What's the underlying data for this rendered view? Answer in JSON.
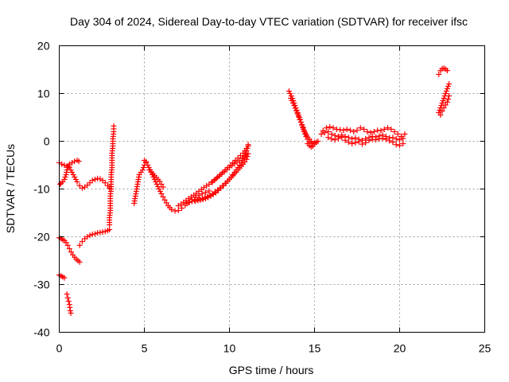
{
  "chart_data": {
    "type": "scatter",
    "title": "Day 304 of 2024, Sidereal Day-to-day VTEC variation (SDTVAR) for receiver ifsc",
    "xlabel": "GPS time / hours",
    "ylabel": "SDTVAR / TECUs",
    "xlim": [
      0,
      25
    ],
    "ylim": [
      -40,
      20
    ],
    "x_ticks": [
      0,
      5,
      10,
      15,
      20,
      25
    ],
    "y_ticks": [
      -40,
      -30,
      -20,
      -10,
      0,
      10,
      20
    ],
    "grid": true,
    "marker": "+",
    "color": "#ff0000",
    "series": [
      {
        "points": [
          [
            0.0,
            -4.5
          ],
          [
            0.15,
            -4.8
          ],
          [
            0.3,
            -5.0
          ],
          [
            0.45,
            -5.2
          ],
          [
            0.6,
            -4.8
          ],
          [
            0.75,
            -4.5
          ],
          [
            0.9,
            -4.2
          ],
          [
            1.05,
            -4.0
          ],
          [
            1.15,
            -4.2
          ]
        ]
      },
      {
        "points": [
          [
            0.05,
            -9.0
          ],
          [
            0.1,
            -8.8
          ],
          [
            0.2,
            -8.5
          ],
          [
            0.3,
            -8.0
          ],
          [
            0.4,
            -7.0
          ],
          [
            0.45,
            -6.0
          ],
          [
            0.5,
            -5.5
          ],
          [
            0.55,
            -5.2
          ]
        ]
      },
      {
        "points": [
          [
            0.6,
            -5.5
          ],
          [
            0.75,
            -6.5
          ],
          [
            0.9,
            -7.5
          ],
          [
            1.05,
            -8.5
          ],
          [
            1.2,
            -9.3
          ],
          [
            1.35,
            -9.8
          ],
          [
            1.5,
            -9.6
          ],
          [
            1.65,
            -9.2
          ],
          [
            1.8,
            -8.7
          ],
          [
            1.95,
            -8.2
          ],
          [
            2.1,
            -8.0
          ],
          [
            2.25,
            -7.8
          ],
          [
            2.4,
            -7.9
          ],
          [
            2.55,
            -8.2
          ],
          [
            2.7,
            -8.7
          ],
          [
            2.85,
            -9.3
          ],
          [
            2.95,
            -9.8
          ]
        ]
      },
      {
        "points": [
          [
            0.0,
            -20.2
          ],
          [
            0.1,
            -20.4
          ],
          [
            0.2,
            -20.6
          ],
          [
            0.3,
            -20.8
          ],
          [
            0.4,
            -21.2
          ],
          [
            0.5,
            -21.8
          ],
          [
            0.6,
            -22.5
          ],
          [
            0.7,
            -23.2
          ],
          [
            0.8,
            -23.8
          ],
          [
            0.9,
            -24.3
          ],
          [
            1.0,
            -24.7
          ],
          [
            1.1,
            -25.0
          ],
          [
            1.2,
            -25.3
          ]
        ]
      },
      {
        "points": [
          [
            1.2,
            -21.8
          ],
          [
            1.35,
            -21.0
          ],
          [
            1.5,
            -20.4
          ],
          [
            1.65,
            -20.0
          ],
          [
            1.8,
            -19.7
          ],
          [
            1.95,
            -19.5
          ],
          [
            2.1,
            -19.4
          ],
          [
            2.25,
            -19.2
          ],
          [
            2.4,
            -19.1
          ],
          [
            2.55,
            -19.0
          ],
          [
            2.7,
            -18.9
          ],
          [
            2.85,
            -18.7
          ],
          [
            2.95,
            -18.5
          ]
        ]
      },
      {
        "points": [
          [
            0.0,
            -28.0
          ],
          [
            0.1,
            -28.2
          ],
          [
            0.2,
            -28.4
          ],
          [
            0.3,
            -28.6
          ]
        ]
      },
      {
        "points": [
          [
            0.45,
            -32.0
          ],
          [
            0.5,
            -32.8
          ],
          [
            0.55,
            -33.5
          ],
          [
            0.6,
            -34.2
          ],
          [
            0.62,
            -34.8
          ],
          [
            0.65,
            -35.5
          ],
          [
            0.68,
            -36.0
          ]
        ]
      },
      {
        "points": [
          [
            2.95,
            -17.5
          ],
          [
            2.95,
            -16.0
          ],
          [
            3.0,
            -14.5
          ],
          [
            3.0,
            -13.0
          ],
          [
            3.0,
            -11.5
          ],
          [
            3.05,
            -10.0
          ],
          [
            3.05,
            -8.5
          ],
          [
            3.05,
            -7.0
          ],
          [
            3.1,
            -5.5
          ],
          [
            3.1,
            -4.0
          ],
          [
            3.1,
            -2.5
          ],
          [
            3.15,
            -1.0
          ],
          [
            3.15,
            0.5
          ],
          [
            3.2,
            2.0
          ],
          [
            3.2,
            3.2
          ]
        ]
      },
      {
        "points": [
          [
            4.4,
            -13.0
          ],
          [
            4.45,
            -12.0
          ],
          [
            4.5,
            -11.0
          ],
          [
            4.55,
            -10.0
          ],
          [
            4.6,
            -9.0
          ],
          [
            4.65,
            -8.0
          ],
          [
            4.7,
            -7.0
          ],
          [
            4.8,
            -6.5
          ],
          [
            4.9,
            -6.0
          ],
          [
            5.0,
            -5.0
          ],
          [
            5.1,
            -4.3
          ]
        ]
      },
      {
        "points": [
          [
            5.0,
            -4.0
          ],
          [
            5.2,
            -5.0
          ],
          [
            5.4,
            -6.5
          ],
          [
            5.6,
            -8.0
          ],
          [
            5.8,
            -9.5
          ],
          [
            6.0,
            -11.0
          ],
          [
            6.2,
            -12.3
          ],
          [
            6.4,
            -13.5
          ],
          [
            6.6,
            -14.3
          ],
          [
            6.8,
            -14.6
          ],
          [
            7.0,
            -14.5
          ],
          [
            7.2,
            -14.0
          ],
          [
            7.4,
            -13.4
          ],
          [
            7.6,
            -12.8
          ],
          [
            7.8,
            -12.2
          ],
          [
            8.0,
            -11.7
          ],
          [
            8.2,
            -11.3
          ],
          [
            8.4,
            -11.0
          ],
          [
            8.6,
            -10.7
          ],
          [
            8.8,
            -10.4
          ]
        ]
      },
      {
        "points": [
          [
            7.0,
            -13.5
          ],
          [
            7.3,
            -12.8
          ],
          [
            7.6,
            -12.0
          ],
          [
            7.9,
            -11.3
          ],
          [
            8.2,
            -10.5
          ],
          [
            8.5,
            -9.7
          ],
          [
            8.8,
            -9.0
          ],
          [
            9.1,
            -8.2
          ],
          [
            9.4,
            -7.3
          ],
          [
            9.7,
            -6.4
          ],
          [
            10.0,
            -5.5
          ],
          [
            10.3,
            -4.7
          ],
          [
            10.6,
            -4.0
          ],
          [
            10.9,
            -3.2
          ],
          [
            11.0,
            -2.6
          ]
        ]
      },
      {
        "points": [
          [
            7.5,
            -13.0
          ],
          [
            7.8,
            -12.6
          ],
          [
            8.1,
            -12.2
          ],
          [
            8.4,
            -12.0
          ],
          [
            8.7,
            -11.6
          ],
          [
            9.0,
            -11.0
          ],
          [
            9.3,
            -10.2
          ],
          [
            9.6,
            -9.3
          ],
          [
            9.9,
            -8.3
          ],
          [
            10.2,
            -7.2
          ],
          [
            10.5,
            -6.0
          ],
          [
            10.8,
            -4.8
          ],
          [
            11.0,
            -3.8
          ],
          [
            11.1,
            -2.6
          ]
        ]
      },
      {
        "points": [
          [
            8.0,
            -12.5
          ],
          [
            8.3,
            -12.3
          ],
          [
            8.6,
            -12.0
          ],
          [
            8.9,
            -11.5
          ],
          [
            9.2,
            -10.8
          ],
          [
            9.5,
            -9.8
          ],
          [
            9.8,
            -8.8
          ],
          [
            10.1,
            -7.5
          ],
          [
            10.4,
            -6.0
          ],
          [
            10.7,
            -4.5
          ],
          [
            10.9,
            -3.0
          ],
          [
            11.05,
            -1.5
          ],
          [
            11.1,
            -0.7
          ]
        ]
      },
      {
        "points": [
          [
            9.0,
            -8.5
          ],
          [
            9.3,
            -7.5
          ],
          [
            9.6,
            -6.5
          ],
          [
            9.9,
            -5.5
          ],
          [
            10.2,
            -4.5
          ],
          [
            10.5,
            -3.5
          ],
          [
            10.8,
            -2.5
          ],
          [
            11.0,
            -1.5
          ],
          [
            11.1,
            -1.0
          ]
        ]
      },
      {
        "points": [
          [
            5.3,
            -6.0
          ],
          [
            5.5,
            -6.8
          ],
          [
            5.7,
            -7.6
          ],
          [
            5.9,
            -8.4
          ],
          [
            6.0,
            -9.0
          ],
          [
            6.1,
            -9.6
          ]
        ]
      },
      {
        "points": [
          [
            13.5,
            10.5
          ],
          [
            13.7,
            9.0
          ],
          [
            13.9,
            7.0
          ],
          [
            14.1,
            5.0
          ],
          [
            14.3,
            3.0
          ],
          [
            14.5,
            1.0
          ],
          [
            14.7,
            -0.2
          ],
          [
            14.9,
            -0.5
          ],
          [
            15.1,
            -0.2
          ]
        ]
      },
      {
        "points": [
          [
            13.6,
            9.0
          ],
          [
            13.8,
            7.5
          ],
          [
            14.0,
            5.8
          ],
          [
            14.2,
            4.0
          ],
          [
            14.4,
            2.2
          ],
          [
            14.6,
            0.8
          ],
          [
            14.8,
            0.0
          ],
          [
            15.0,
            -0.3
          ],
          [
            15.2,
            0.0
          ]
        ]
      },
      {
        "points": [
          [
            14.6,
            -0.5
          ],
          [
            14.7,
            -0.9
          ],
          [
            14.8,
            -1.2
          ],
          [
            14.9,
            -1.0
          ],
          [
            15.0,
            -0.6
          ]
        ]
      },
      {
        "points": [
          [
            15.5,
            2.2
          ],
          [
            15.7,
            2.8
          ],
          [
            15.9,
            3.0
          ],
          [
            16.1,
            2.8
          ],
          [
            16.3,
            2.5
          ],
          [
            16.5,
            2.4
          ],
          [
            16.7,
            2.3
          ],
          [
            16.9,
            2.5
          ],
          [
            17.1,
            2.3
          ],
          [
            17.3,
            2.0
          ],
          [
            17.5,
            2.3
          ],
          [
            17.7,
            2.8
          ],
          [
            17.9,
            2.5
          ],
          [
            18.1,
            2.0
          ],
          [
            18.3,
            1.8
          ],
          [
            18.5,
            2.0
          ],
          [
            18.7,
            2.3
          ],
          [
            18.9,
            2.2
          ],
          [
            19.1,
            2.5
          ],
          [
            19.3,
            2.8
          ],
          [
            19.5,
            2.5
          ],
          [
            19.7,
            2.0
          ],
          [
            19.9,
            1.5
          ],
          [
            20.1,
            1.0
          ],
          [
            20.3,
            1.5
          ]
        ]
      },
      {
        "points": [
          [
            15.4,
            1.5
          ],
          [
            15.6,
            1.8
          ],
          [
            15.8,
            2.0
          ],
          [
            16.0,
            1.5
          ],
          [
            16.2,
            1.2
          ],
          [
            16.4,
            1.0
          ],
          [
            16.6,
            1.3
          ],
          [
            16.8,
            1.0
          ],
          [
            17.0,
            0.8
          ],
          [
            17.2,
            0.5
          ],
          [
            17.4,
            0.7
          ],
          [
            17.6,
            0.4
          ],
          [
            17.8,
            0.2
          ],
          [
            18.0,
            0.5
          ],
          [
            18.2,
            0.8
          ],
          [
            18.4,
            1.0
          ],
          [
            18.6,
            0.9
          ],
          [
            18.8,
            1.1
          ],
          [
            19.0,
            1.3
          ],
          [
            19.2,
            1.0
          ],
          [
            19.4,
            0.7
          ],
          [
            19.6,
            0.8
          ],
          [
            19.8,
            0.5
          ],
          [
            20.0,
            0.3
          ],
          [
            20.2,
            0.6
          ]
        ]
      },
      {
        "points": [
          [
            15.8,
            0.8
          ],
          [
            16.0,
            0.5
          ],
          [
            16.2,
            0.3
          ],
          [
            16.4,
            0.6
          ],
          [
            16.6,
            0.8
          ],
          [
            16.8,
            0.2
          ],
          [
            17.0,
            -0.2
          ],
          [
            17.2,
            -0.5
          ],
          [
            17.4,
            -0.3
          ],
          [
            17.6,
            -0.1
          ],
          [
            17.8,
            -0.6
          ],
          [
            18.0,
            -0.3
          ],
          [
            18.2,
            0.2
          ],
          [
            18.4,
            0.4
          ],
          [
            18.6,
            0.3
          ],
          [
            18.8,
            0.5
          ],
          [
            19.0,
            0.6
          ],
          [
            19.2,
            0.4
          ],
          [
            19.4,
            0.1
          ],
          [
            19.6,
            -0.2
          ],
          [
            19.8,
            -0.7
          ],
          [
            20.0,
            -0.9
          ],
          [
            20.2,
            -0.5
          ]
        ]
      },
      {
        "points": [
          [
            22.3,
            14.0
          ],
          [
            22.4,
            14.8
          ],
          [
            22.5,
            15.2
          ],
          [
            22.6,
            15.3
          ],
          [
            22.7,
            15.1
          ],
          [
            22.8,
            14.8
          ]
        ]
      },
      {
        "points": [
          [
            22.3,
            6.0
          ],
          [
            22.4,
            7.0
          ],
          [
            22.5,
            8.0
          ],
          [
            22.6,
            9.0
          ],
          [
            22.7,
            10.0
          ],
          [
            22.8,
            11.0
          ],
          [
            22.9,
            12.0
          ]
        ]
      },
      {
        "points": [
          [
            22.4,
            5.5
          ],
          [
            22.5,
            6.3
          ],
          [
            22.6,
            7.0
          ],
          [
            22.7,
            7.6
          ],
          [
            22.8,
            8.2
          ],
          [
            22.85,
            8.8
          ],
          [
            22.9,
            9.5
          ]
        ]
      }
    ]
  }
}
